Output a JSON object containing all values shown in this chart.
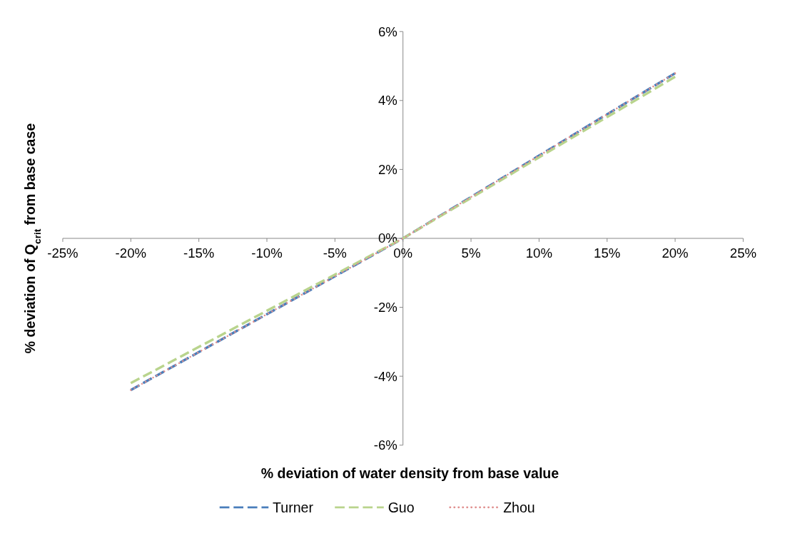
{
  "chart_data": {
    "type": "line",
    "xlabel": "% deviation of water density from base value",
    "ylabel": "% deviation of Q$_{crit}$ from base case",
    "x": [
      -20,
      -15,
      -10,
      -5,
      0,
      5,
      10,
      15,
      20
    ],
    "series": [
      {
        "name": "Turner",
        "color": "#4a7ebb",
        "line_style": "dashed",
        "values": [
          -4.4,
          -3.3,
          -2.2,
          -1.1,
          0,
          1.2,
          2.4,
          3.6,
          4.79
        ]
      },
      {
        "name": "Guo",
        "color": "#b9d48d",
        "line_style": "dashed",
        "values": [
          -4.2,
          -3.15,
          -2.1,
          -1.05,
          0,
          1.17,
          2.35,
          3.52,
          4.69
        ]
      },
      {
        "name": "Zhou",
        "color": "#e0908f",
        "line_style": "dotted",
        "values": [
          -4.4,
          -3.3,
          -2.2,
          -1.1,
          0,
          1.2,
          2.4,
          3.6,
          4.79
        ]
      }
    ],
    "xlim": [
      -25,
      25
    ],
    "ylim": [
      -6,
      6
    ],
    "xticks": [
      {
        "value": -25,
        "label": "-25%"
      },
      {
        "value": -20,
        "label": "-20%"
      },
      {
        "value": -15,
        "label": "-15%"
      },
      {
        "value": -10,
        "label": "-10%"
      },
      {
        "value": -5,
        "label": "-5%"
      },
      {
        "value": 0,
        "label": "0%"
      },
      {
        "value": 5,
        "label": "5%"
      },
      {
        "value": 10,
        "label": "10%"
      },
      {
        "value": 15,
        "label": "15%"
      },
      {
        "value": 20,
        "label": "20%"
      },
      {
        "value": 25,
        "label": "25%"
      }
    ],
    "yticks": [
      {
        "value": -6,
        "label": "-6%"
      },
      {
        "value": -4,
        "label": "-4%"
      },
      {
        "value": -2,
        "label": "-2%"
      },
      {
        "value": 0,
        "label": "0%"
      },
      {
        "value": 2,
        "label": "2%"
      },
      {
        "value": 4,
        "label": "4%"
      },
      {
        "value": 6,
        "label": "6%"
      }
    ],
    "grid": false,
    "legend": "bottom",
    "marker": "none"
  }
}
